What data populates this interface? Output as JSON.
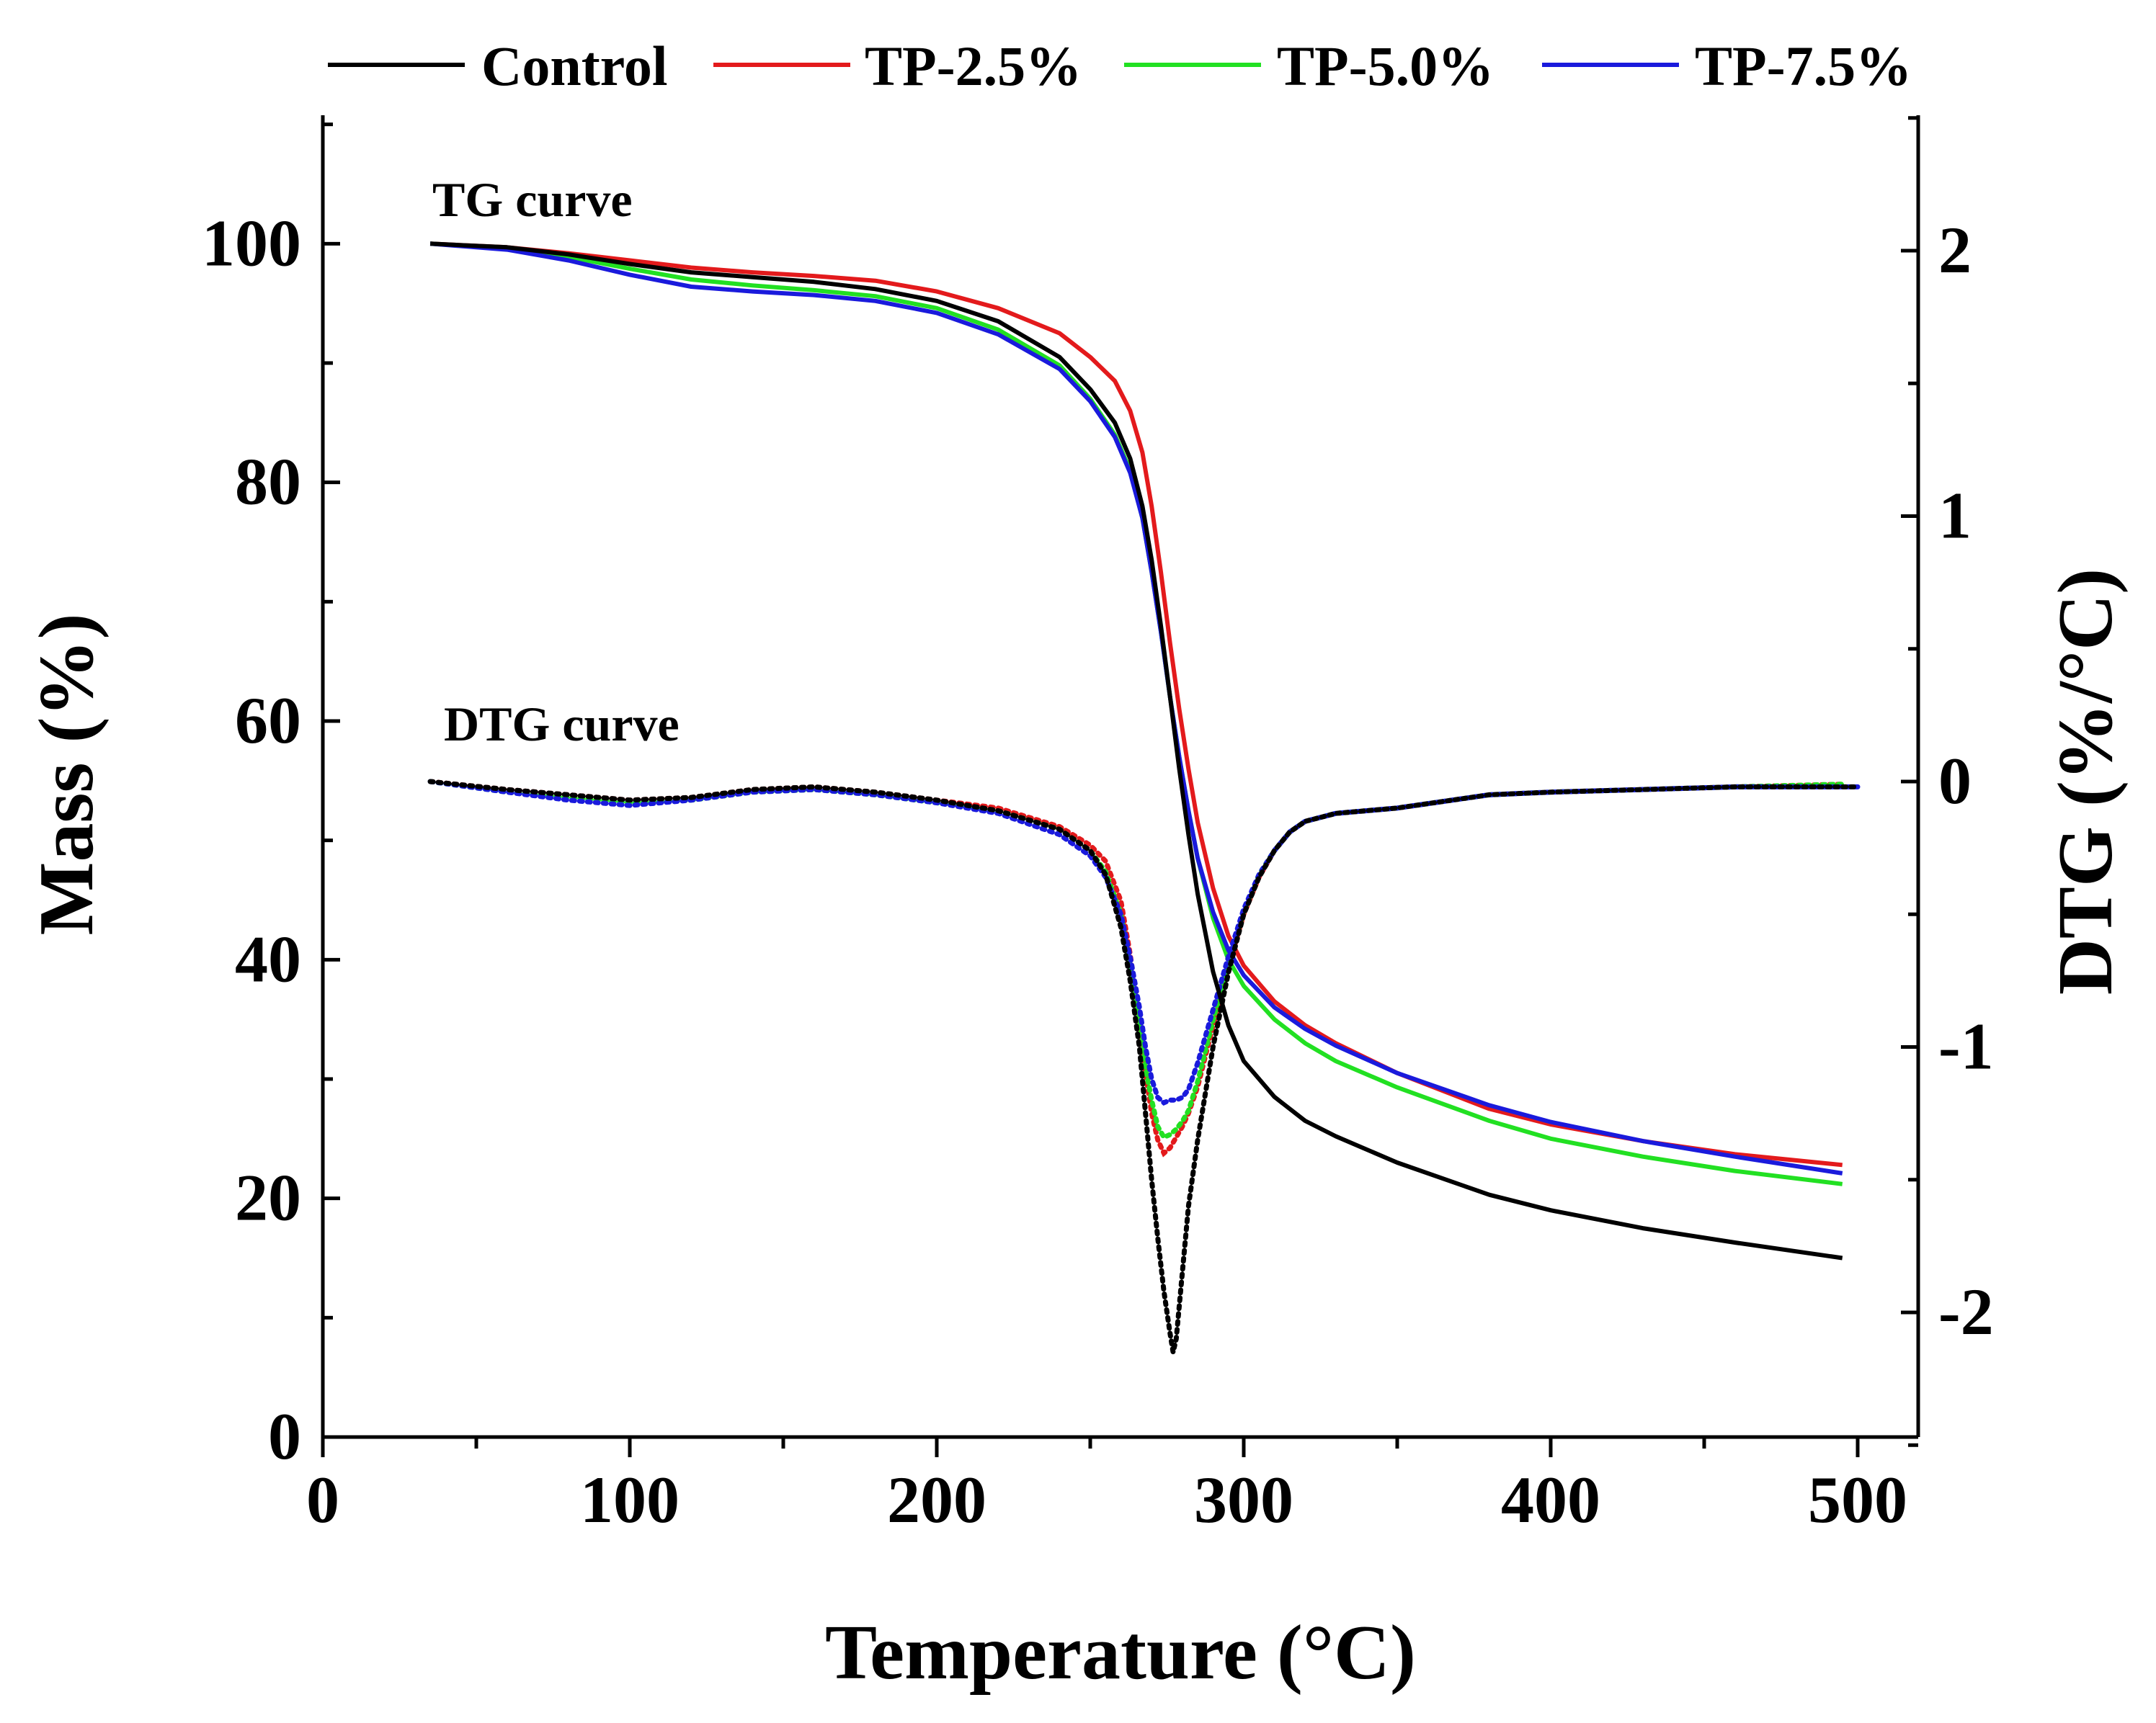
{
  "chart_data": {
    "type": "line",
    "title": "",
    "xlabel": "Temperature (°C)",
    "ylabel": "Mass (%)",
    "y2label": "DTG (%/°C)",
    "xlim": [
      0,
      520
    ],
    "ylim": [
      0,
      110
    ],
    "y2lim": [
      -2.5,
      2.5
    ],
    "xticks": [
      0,
      100,
      200,
      300,
      400,
      500
    ],
    "yticks": [
      0,
      20,
      40,
      60,
      80,
      100
    ],
    "y2ticks": [
      -2,
      -1,
      0,
      1,
      2
    ],
    "legend_position": "top",
    "annotations": [
      "TG curve",
      "DTG curve"
    ],
    "series": [
      {
        "name": "Control",
        "color": "#000000",
        "tg": {
          "x": [
            35,
            60,
            80,
            100,
            120,
            140,
            160,
            180,
            200,
            220,
            240,
            250,
            258,
            263,
            267,
            270,
            273,
            276,
            279,
            282,
            285,
            290,
            295,
            300,
            310,
            320,
            330,
            350,
            380,
            400,
            430,
            460,
            495
          ],
          "y": [
            100,
            99.7,
            99.1,
            98.3,
            97.6,
            97.2,
            96.8,
            96.2,
            95.2,
            93.5,
            90.5,
            87.8,
            85.0,
            82.0,
            78.0,
            73.5,
            68.0,
            62.0,
            56.0,
            50.5,
            45.5,
            39.0,
            34.5,
            31.5,
            28.5,
            26.5,
            25.2,
            23.0,
            20.3,
            19.0,
            17.5,
            16.3,
            15.0
          ]
        },
        "dtg": {
          "x": [
            35,
            60,
            80,
            100,
            120,
            140,
            160,
            180,
            200,
            220,
            240,
            250,
            255,
            260,
            263,
            266,
            268,
            270,
            272,
            274,
            276,
            277,
            278,
            280,
            282,
            285,
            290,
            295,
            300,
            305,
            310,
            315,
            320,
            330,
            350,
            380,
            400,
            430,
            460,
            500
          ],
          "y": [
            0.0,
            -0.03,
            -0.05,
            -0.07,
            -0.06,
            -0.03,
            -0.02,
            -0.04,
            -0.07,
            -0.11,
            -0.18,
            -0.26,
            -0.35,
            -0.55,
            -0.75,
            -1.0,
            -1.25,
            -1.5,
            -1.72,
            -1.92,
            -2.08,
            -2.15,
            -2.1,
            -1.85,
            -1.6,
            -1.35,
            -1.0,
            -0.72,
            -0.5,
            -0.36,
            -0.26,
            -0.19,
            -0.15,
            -0.12,
            -0.1,
            -0.05,
            -0.04,
            -0.03,
            -0.02,
            -0.02
          ]
        }
      },
      {
        "name": "TP-2.5%",
        "color": "#e31a1c",
        "tg": {
          "x": [
            35,
            60,
            80,
            100,
            120,
            140,
            160,
            180,
            200,
            220,
            240,
            250,
            258,
            263,
            267,
            270,
            273,
            276,
            279,
            282,
            285,
            290,
            295,
            300,
            310,
            320,
            330,
            350,
            380,
            400,
            430,
            460,
            495
          ],
          "y": [
            100,
            99.7,
            99.2,
            98.6,
            98.0,
            97.6,
            97.3,
            96.9,
            96.0,
            94.6,
            92.5,
            90.5,
            88.5,
            86.0,
            82.5,
            78.0,
            72.5,
            66.5,
            61.0,
            56.0,
            51.5,
            46.0,
            42.0,
            39.5,
            36.5,
            34.5,
            33.0,
            30.5,
            27.5,
            26.2,
            24.8,
            23.7,
            22.8
          ]
        },
        "dtg": {
          "x": [
            35,
            60,
            80,
            100,
            120,
            140,
            160,
            180,
            200,
            220,
            240,
            250,
            255,
            260,
            263,
            266,
            268,
            270,
            272,
            274,
            276,
            278,
            280,
            282,
            285,
            290,
            295,
            300,
            305,
            310,
            315,
            320,
            330,
            350,
            380,
            400,
            430,
            460,
            495
          ],
          "y": [
            0.0,
            -0.03,
            -0.05,
            -0.07,
            -0.06,
            -0.03,
            -0.02,
            -0.04,
            -0.07,
            -0.1,
            -0.17,
            -0.24,
            -0.3,
            -0.45,
            -0.65,
            -0.9,
            -1.1,
            -1.25,
            -1.35,
            -1.4,
            -1.38,
            -1.34,
            -1.3,
            -1.25,
            -1.15,
            -0.92,
            -0.7,
            -0.5,
            -0.36,
            -0.26,
            -0.19,
            -0.15,
            -0.12,
            -0.1,
            -0.05,
            -0.04,
            -0.03,
            -0.02,
            -0.01
          ]
        }
      },
      {
        "name": "TP-5.0%",
        "color": "#22e022",
        "tg": {
          "x": [
            35,
            60,
            80,
            100,
            120,
            140,
            160,
            180,
            200,
            220,
            240,
            250,
            258,
            263,
            267,
            270,
            273,
            276,
            279,
            282,
            285,
            290,
            295,
            300,
            310,
            320,
            330,
            350,
            380,
            400,
            430,
            460,
            495
          ],
          "y": [
            100,
            99.6,
            98.9,
            97.9,
            97.0,
            96.5,
            96.1,
            95.6,
            94.6,
            92.8,
            89.8,
            87.0,
            84.0,
            81.0,
            77.0,
            72.5,
            67.5,
            62.0,
            57.0,
            52.5,
            48.5,
            43.5,
            40.0,
            37.8,
            35.0,
            33.0,
            31.5,
            29.3,
            26.5,
            25.0,
            23.5,
            22.3,
            21.2
          ]
        },
        "dtg": {
          "x": [
            35,
            60,
            80,
            100,
            120,
            140,
            160,
            180,
            200,
            220,
            240,
            250,
            255,
            260,
            263,
            266,
            268,
            270,
            272,
            274,
            276,
            278,
            280,
            282,
            285,
            290,
            295,
            300,
            305,
            310,
            315,
            320,
            330,
            350,
            380,
            400,
            430,
            460,
            495
          ],
          "y": [
            0.0,
            -0.04,
            -0.06,
            -0.08,
            -0.07,
            -0.04,
            -0.03,
            -0.05,
            -0.08,
            -0.11,
            -0.18,
            -0.26,
            -0.34,
            -0.5,
            -0.7,
            -0.92,
            -1.08,
            -1.2,
            -1.3,
            -1.34,
            -1.33,
            -1.31,
            -1.28,
            -1.24,
            -1.13,
            -0.9,
            -0.68,
            -0.49,
            -0.35,
            -0.26,
            -0.19,
            -0.15,
            -0.12,
            -0.1,
            -0.05,
            -0.04,
            -0.03,
            -0.02,
            -0.01
          ]
        }
      },
      {
        "name": "TP-7.5%",
        "color": "#1a1adc",
        "tg": {
          "x": [
            35,
            60,
            80,
            100,
            120,
            140,
            160,
            180,
            200,
            220,
            240,
            250,
            258,
            263,
            267,
            270,
            273,
            276,
            279,
            282,
            285,
            290,
            295,
            300,
            310,
            320,
            330,
            350,
            380,
            400,
            430,
            460,
            495
          ],
          "y": [
            100,
            99.5,
            98.6,
            97.4,
            96.4,
            96.0,
            95.7,
            95.2,
            94.2,
            92.4,
            89.5,
            86.8,
            83.8,
            80.8,
            77.0,
            72.5,
            67.5,
            62.0,
            57.0,
            52.5,
            48.5,
            44.0,
            40.8,
            38.7,
            36.0,
            34.2,
            32.8,
            30.5,
            27.8,
            26.4,
            24.8,
            23.5,
            22.1
          ]
        },
        "dtg": {
          "x": [
            35,
            60,
            80,
            100,
            120,
            140,
            160,
            180,
            200,
            220,
            240,
            250,
            255,
            260,
            263,
            266,
            268,
            270,
            272,
            274,
            276,
            278,
            280,
            282,
            285,
            290,
            295,
            300,
            305,
            310,
            315,
            320,
            330,
            350,
            380,
            400,
            430,
            460,
            500
          ],
          "y": [
            0.0,
            -0.04,
            -0.07,
            -0.09,
            -0.07,
            -0.04,
            -0.03,
            -0.05,
            -0.08,
            -0.12,
            -0.2,
            -0.28,
            -0.36,
            -0.5,
            -0.66,
            -0.85,
            -1.0,
            -1.12,
            -1.19,
            -1.21,
            -1.2,
            -1.2,
            -1.19,
            -1.16,
            -1.06,
            -0.86,
            -0.66,
            -0.48,
            -0.35,
            -0.26,
            -0.19,
            -0.15,
            -0.12,
            -0.1,
            -0.05,
            -0.04,
            -0.03,
            -0.02,
            -0.02
          ]
        }
      }
    ]
  }
}
